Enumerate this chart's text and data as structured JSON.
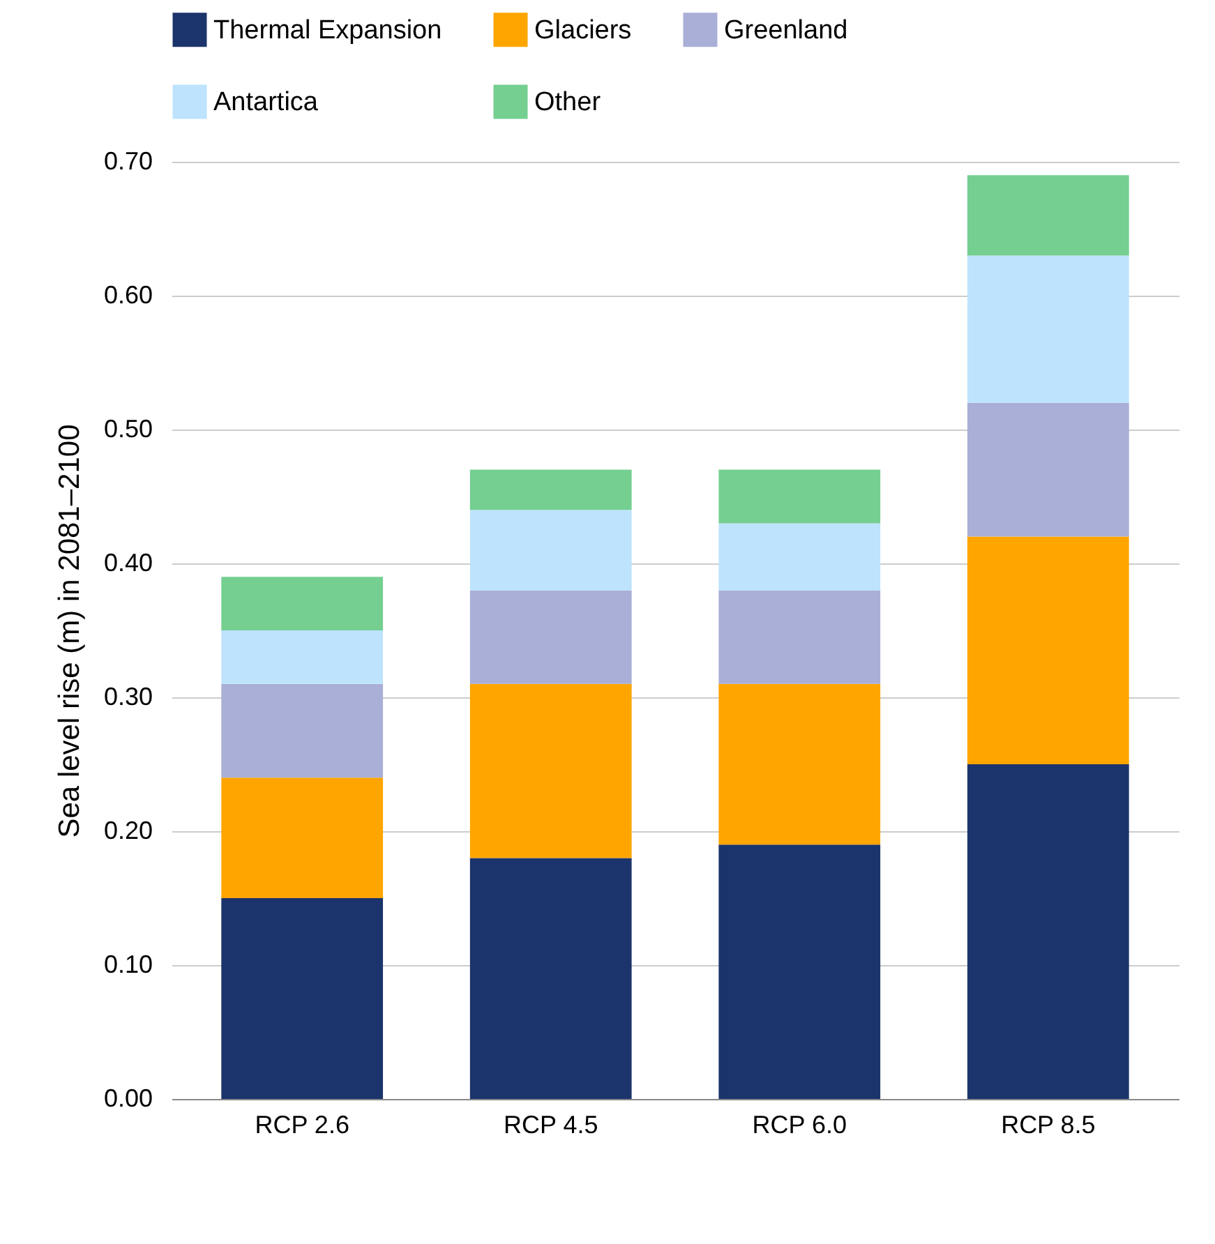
{
  "chart_data": {
    "type": "bar",
    "stacked": true,
    "ylabel": "Sea level rise (m) in 2081–2100",
    "categories": [
      "RCP 2.6",
      "RCP 4.5",
      "RCP 6.0",
      "RCP 8.5"
    ],
    "series": [
      {
        "name": "Thermal Expansion",
        "color": "#1b346b",
        "values": [
          0.15,
          0.18,
          0.19,
          0.25
        ]
      },
      {
        "name": "Glaciers",
        "color": "#ffa500",
        "values": [
          0.09,
          0.13,
          0.12,
          0.17
        ]
      },
      {
        "name": "Greenland",
        "color": "#a9afd6",
        "values": [
          0.07,
          0.07,
          0.07,
          0.1
        ]
      },
      {
        "name": "Antartica",
        "color": "#bde3fd",
        "values": [
          0.04,
          0.06,
          0.05,
          0.11
        ]
      },
      {
        "name": "Other",
        "color": "#74cf91",
        "values": [
          0.04,
          0.03,
          0.04,
          0.06
        ]
      }
    ],
    "ylim": [
      0,
      0.7
    ],
    "yticks": [
      {
        "value": 0,
        "label": "0.00"
      },
      {
        "value": 0.1,
        "label": "0.10"
      },
      {
        "value": 0.2,
        "label": "0.20"
      },
      {
        "value": 0.3,
        "label": "0.30"
      },
      {
        "value": 0.4,
        "label": "0.40"
      },
      {
        "value": 0.5,
        "label": "0.50"
      },
      {
        "value": 0.6,
        "label": "0.60"
      },
      {
        "value": 0.7,
        "label": "0.70"
      }
    ],
    "grid": "y",
    "legend": "top"
  }
}
